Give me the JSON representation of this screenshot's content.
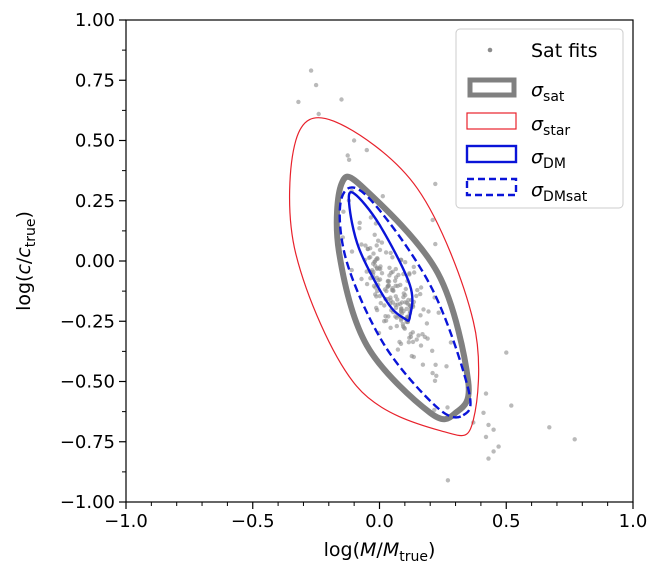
{
  "chart_data": {
    "type": "scatter",
    "x_axis": {
      "label": "log(M/M_true)",
      "label_parts": {
        "prefix": "log(",
        "var": "M",
        "slash": "/",
        "var2": "M",
        "sub": "true",
        "suffix": ")"
      },
      "range": [
        -1.0,
        1.0
      ],
      "ticks": [
        -1.0,
        -0.5,
        0.0,
        0.5,
        1.0
      ],
      "tick_labels": [
        "−1.0",
        "−0.5",
        "0.0",
        "0.5",
        "1.0"
      ],
      "minor_step": 0.1
    },
    "y_axis": {
      "label": "log(c/c_true)",
      "label_parts": {
        "prefix": "log(",
        "var": "c",
        "slash": "/",
        "var2": "c",
        "sub": "true",
        "suffix": ")"
      },
      "range": [
        -1.0,
        1.0
      ],
      "ticks": [
        -1.0,
        -0.75,
        -0.5,
        -0.25,
        0.0,
        0.25,
        0.5,
        0.75,
        1.0
      ],
      "tick_labels": [
        "−1.00",
        "−0.75",
        "−0.50",
        "−0.25",
        "0.00",
        "0.25",
        "0.50",
        "0.75",
        "1.00"
      ],
      "minor_step": 0.125
    },
    "grid": false,
    "legend": {
      "placement": "top-right",
      "entries": [
        {
          "key": "scatter",
          "sym": "",
          "sub": "",
          "text": "Sat fits"
        },
        {
          "key": "sat",
          "sym": "σ",
          "sub": "sat",
          "text": ""
        },
        {
          "key": "star",
          "sym": "σ",
          "sub": "star",
          "text": ""
        },
        {
          "key": "dm",
          "sym": "σ",
          "sub": "DM",
          "text": ""
        },
        {
          "key": "dmsat",
          "sym": "σ",
          "sub": "DMsat",
          "text": ""
        }
      ]
    },
    "ellipses": [
      {
        "key": "star",
        "name": "σ_star",
        "center": [
          0.02,
          -0.065
        ],
        "points": [
          [
            0.26,
            -0.71
          ],
          [
            0.37,
            -0.66
          ],
          [
            0.37,
            -0.25
          ],
          [
            0.15,
            0.3
          ],
          [
            -0.18,
            0.58
          ],
          [
            -0.33,
            0.5
          ],
          [
            -0.33,
            0.03
          ],
          [
            -0.09,
            -0.52
          ]
        ],
        "color": "#e8212b",
        "style": "solid",
        "weight": "thin"
      },
      {
        "key": "sat",
        "name": "σ_sat",
        "center": [
          0.075,
          -0.15
        ],
        "points": [
          [
            0.3,
            -0.63
          ],
          [
            0.35,
            -0.5
          ],
          [
            0.23,
            -0.05
          ],
          [
            -0.06,
            0.3
          ],
          [
            -0.15,
            0.32
          ],
          [
            -0.16,
            0.04
          ],
          [
            -0.05,
            -0.35
          ],
          [
            0.2,
            -0.63
          ]
        ],
        "color": "#808080",
        "style": "solid",
        "weight": "heavy"
      },
      {
        "key": "dm",
        "name": "σ_DM",
        "center": [
          0.0,
          0.015
        ],
        "points": [
          [
            0.12,
            -0.23
          ],
          [
            0.12,
            -0.1
          ],
          [
            0.0,
            0.15
          ],
          [
            -0.1,
            0.28
          ],
          [
            -0.12,
            0.24
          ],
          [
            -0.08,
            0.05
          ],
          [
            0.03,
            -0.17
          ],
          [
            0.1,
            -0.24
          ]
        ],
        "color": "#0a14d8",
        "style": "solid",
        "weight": "medium"
      },
      {
        "key": "dmsat",
        "name": "σ_DMsat",
        "center": [
          0.09,
          -0.155
        ],
        "points": [
          [
            0.33,
            -0.64
          ],
          [
            0.35,
            -0.53
          ],
          [
            0.2,
            -0.1
          ],
          [
            -0.05,
            0.27
          ],
          [
            -0.15,
            0.26
          ],
          [
            -0.13,
            0.0
          ],
          [
            0.02,
            -0.35
          ],
          [
            0.23,
            -0.61
          ]
        ],
        "color": "#0a14d8",
        "style": "dashed",
        "weight": "medium"
      }
    ],
    "scatter": {
      "name": "Sat fits",
      "color": "#8c8c8c",
      "outliers": [
        [
          -0.27,
          0.79
        ],
        [
          -0.25,
          0.73
        ],
        [
          -0.32,
          0.66
        ],
        [
          -0.24,
          0.61
        ],
        [
          -0.15,
          0.67
        ],
        [
          -0.1,
          0.5
        ],
        [
          -0.12,
          0.42
        ],
        [
          -0.05,
          0.46
        ],
        [
          0.22,
          0.32
        ],
        [
          0.21,
          0.17
        ],
        [
          0.22,
          0.07
        ],
        [
          0.5,
          -0.38
        ],
        [
          0.52,
          -0.6
        ],
        [
          0.45,
          -0.7
        ],
        [
          0.42,
          -0.73
        ],
        [
          0.47,
          -0.77
        ],
        [
          0.45,
          -0.79
        ],
        [
          0.43,
          -0.82
        ],
        [
          0.37,
          -0.67
        ],
        [
          0.67,
          -0.69
        ],
        [
          0.77,
          -0.74
        ],
        [
          0.27,
          -0.91
        ],
        [
          0.43,
          -0.68
        ],
        [
          0.42,
          -0.55
        ]
      ],
      "cluster": {
        "count": 200,
        "x_mean": 0.06,
        "x_sd": 0.09,
        "y_mean": -0.14,
        "y_sd": 0.17,
        "correlation": -0.8,
        "seed": 7
      }
    }
  }
}
